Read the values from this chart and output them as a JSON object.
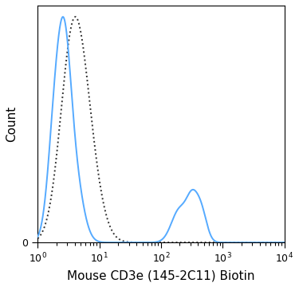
{
  "title": "",
  "xlabel": "Mouse CD3e (145-2C11) Biotin",
  "ylabel": "Count",
  "xlim_log": [
    1.0,
    10000
  ],
  "ylim": [
    0,
    1.05
  ],
  "background_color": "#ffffff",
  "solid_color": "#55aaff",
  "dashed_color": "#333333",
  "solid_linewidth": 1.4,
  "dashed_linewidth": 1.4,
  "xlabel_fontsize": 11,
  "ylabel_fontsize": 11,
  "tick_fontsize": 9,
  "figsize": [
    3.75,
    3.6
  ],
  "dpi": 100,
  "iso_peaks": [
    {
      "mu": 3.5,
      "sigma": 0.2,
      "amp": 1.0
    },
    {
      "mu": 5.5,
      "sigma": 0.22,
      "amp": 0.7
    }
  ],
  "cd3e_peaks": [
    {
      "mu": 2.0,
      "sigma": 0.12,
      "amp": 2.5
    },
    {
      "mu": 2.8,
      "sigma": 0.1,
      "amp": 2.0
    },
    {
      "mu": 3.8,
      "sigma": 0.14,
      "amp": 1.3
    },
    {
      "mu": 200,
      "sigma": 0.13,
      "amp": 0.6
    },
    {
      "mu": 320,
      "sigma": 0.09,
      "amp": 0.65
    },
    {
      "mu": 450,
      "sigma": 0.09,
      "amp": 0.55
    }
  ]
}
